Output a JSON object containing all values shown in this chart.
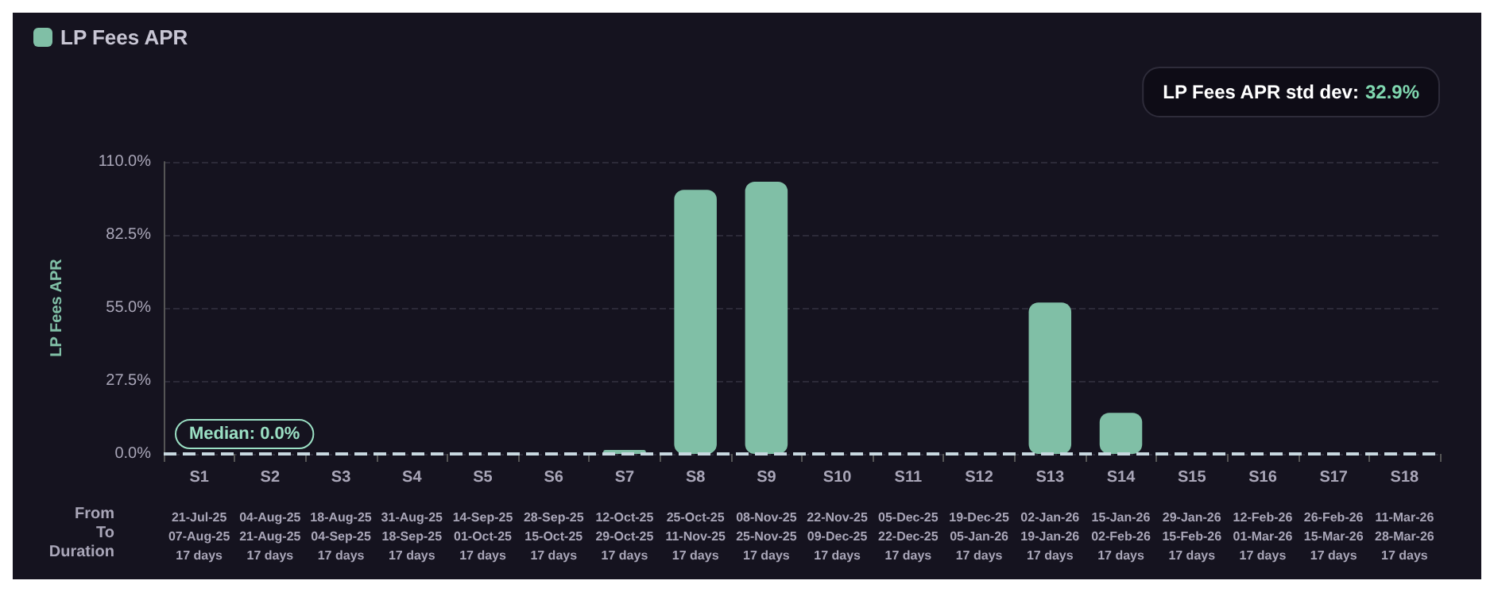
{
  "chart_data": {
    "type": "bar",
    "ylabel": "LP Fees APR",
    "categories": [
      "S1\n21-Jul-25\n07-Aug-25\n17 days",
      "S2\n04-Aug-25\n21-Aug-25\n17 days",
      "S3\n18-Aug-25\n04-Sep-25\n17 days",
      "S4\n31-Aug-25\n18-Sep-25\n17 days",
      "S5\n14-Sep-25\n01-Oct-25\n17 days",
      "S6\n28-Sep-25\n15-Oct-25\n17 days",
      "S7\n12-Oct-25\n29-Oct-25\n17 days",
      "S8\n25-Oct-25\n11-Nov-25\n17 days",
      "S9\n08-Nov-25\n25-Nov-25\n17 days",
      "S10\n22-Nov-25\n09-Dec-25\n17 days",
      "S11\n05-Dec-25\n22-Dec-25\n17 days",
      "S12\n19-Dec-25\n05-Jan-26\n17 days",
      "S13\n02-Jan-26\n19-Jan-26\n17 days",
      "S14\n15-Jan-26\n02-Feb-26\n17 days",
      "S15\n29-Jan-26\n15-Feb-26\n17 days",
      "S16\n12-Feb-26\n01-Mar-26\n17 days",
      "S17\n26-Feb-26\n15-Mar-26\n17 days",
      "S18\n11-Mar-26\n28-Mar-26\n17 days"
    ],
    "series": [
      {
        "name": "LP Fees APR",
        "color": "#80bfa6",
        "values": [
          0,
          0,
          0,
          0,
          0,
          0,
          1.5,
          99.5,
          102.5,
          0,
          0,
          0,
          57,
          15.5,
          0,
          0,
          0,
          0
        ]
      }
    ],
    "ylim": [
      0,
      110
    ],
    "yticks": [
      {
        "value": 0,
        "label": "0.0%"
      },
      {
        "value": 27.5,
        "label": "27.5%"
      },
      {
        "value": 55,
        "label": "55.0%"
      },
      {
        "value": 82.5,
        "label": "82.5%"
      },
      {
        "value": 110,
        "label": "110.0%"
      }
    ],
    "grid": "y",
    "legend": "top left",
    "ref_lines": [
      {
        "axis": "y",
        "value": 0,
        "label": "Median: 0.0%",
        "line_style": "dashed",
        "color": "#c8d8e0"
      }
    ],
    "annotations": [
      "From",
      "To",
      "Duration",
      "LP Fees APR std dev: 32.9%"
    ]
  }
}
